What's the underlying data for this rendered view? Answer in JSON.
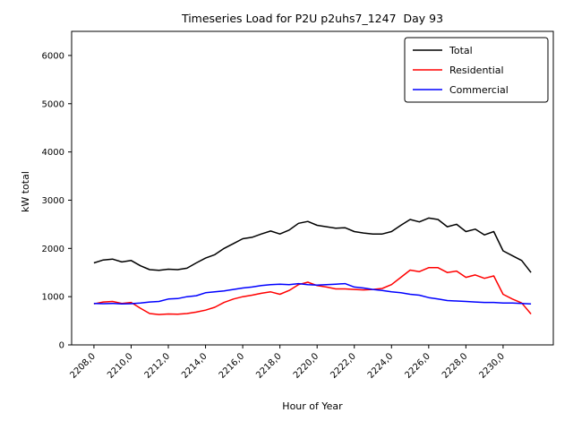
{
  "chart_data": {
    "type": "line",
    "title": "Timeseries Load for P2U p2uhs7_1247  Day 93",
    "xlabel": "Hour of Year",
    "ylabel": "kW total",
    "grid": false,
    "legend_position": "upper right",
    "xlim": [
      2206.8,
      2232.7
    ],
    "ylim": [
      0,
      6500
    ],
    "x_ticks": [
      2208,
      2210,
      2212,
      2214,
      2216,
      2218,
      2220,
      2222,
      2224,
      2226,
      2228,
      2230
    ],
    "x_tick_labels": [
      "2208,0",
      "2210,0",
      "2212,0",
      "2214,0",
      "2216,0",
      "2218,0",
      "2220,0",
      "2222,0",
      "2224,0",
      "2226,0",
      "2228,0",
      "2230,0"
    ],
    "y_ticks": [
      0,
      1000,
      2000,
      3000,
      4000,
      5000,
      6000
    ],
    "x": [
      2208.0,
      2208.5,
      2209.0,
      2209.5,
      2210.0,
      2210.5,
      2211.0,
      2211.5,
      2212.0,
      2212.5,
      2213.0,
      2213.5,
      2214.0,
      2214.5,
      2215.0,
      2215.5,
      2216.0,
      2216.5,
      2217.0,
      2217.5,
      2218.0,
      2218.5,
      2219.0,
      2219.5,
      2220.0,
      2220.5,
      2221.0,
      2221.5,
      2222.0,
      2222.5,
      2223.0,
      2223.5,
      2224.0,
      2224.5,
      2225.0,
      2225.5,
      2226.0,
      2226.5,
      2227.0,
      2227.5,
      2228.0,
      2228.5,
      2229.0,
      2229.5,
      2230.0,
      2230.5,
      2231.0,
      2231.5
    ],
    "series": [
      {
        "name": "Total",
        "color": "#000000",
        "values": [
          1700,
          1760,
          1780,
          1720,
          1750,
          1640,
          1560,
          1545,
          1570,
          1560,
          1590,
          1700,
          1800,
          1870,
          2000,
          2100,
          2200,
          2230,
          2300,
          2360,
          2300,
          2380,
          2520,
          2560,
          2480,
          2450,
          2420,
          2430,
          2350,
          2320,
          2300,
          2300,
          2350,
          2480,
          2600,
          2550,
          2630,
          2600,
          2450,
          2500,
          2350,
          2400,
          2280,
          2350,
          1950,
          1850,
          1750,
          1500
        ]
      },
      {
        "name": "Residential",
        "color": "#ff0000",
        "values": [
          850,
          890,
          900,
          860,
          880,
          760,
          650,
          630,
          640,
          635,
          650,
          680,
          720,
          780,
          880,
          950,
          1000,
          1030,
          1070,
          1100,
          1050,
          1130,
          1250,
          1300,
          1230,
          1200,
          1160,
          1160,
          1150,
          1140,
          1150,
          1170,
          1250,
          1400,
          1550,
          1520,
          1600,
          1600,
          1500,
          1530,
          1400,
          1450,
          1380,
          1430,
          1050,
          950,
          870,
          640
        ]
      },
      {
        "name": "Commercial",
        "color": "#0000ff",
        "values": [
          860,
          855,
          860,
          850,
          855,
          870,
          890,
          900,
          950,
          960,
          1000,
          1020,
          1080,
          1100,
          1120,
          1150,
          1180,
          1200,
          1230,
          1250,
          1260,
          1250,
          1270,
          1250,
          1240,
          1250,
          1260,
          1270,
          1200,
          1180,
          1150,
          1130,
          1100,
          1080,
          1050,
          1030,
          980,
          950,
          920,
          910,
          900,
          890,
          880,
          880,
          870,
          870,
          860,
          850
        ]
      }
    ]
  }
}
